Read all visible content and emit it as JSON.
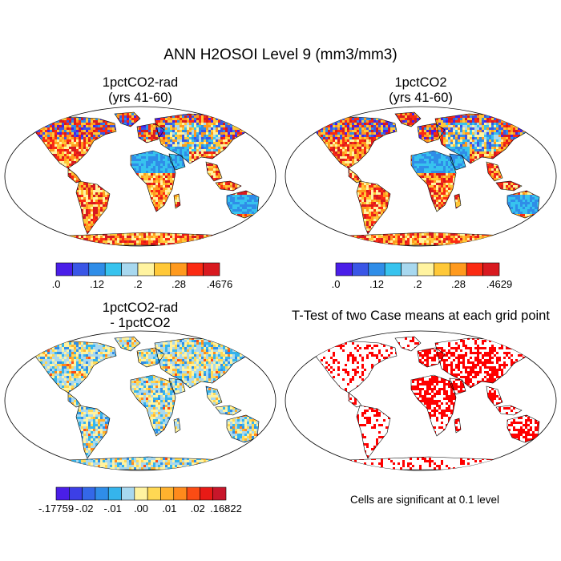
{
  "figure": {
    "title": "ANN H2OSOI Level 9 (mm3/mm3)",
    "note": "Cells are significant at 0.1 level"
  },
  "panels": [
    {
      "title_line1": "1pctCO2-rad",
      "title_line2": "(yrs 41-60)"
    },
    {
      "title_line1": "1pctCO2",
      "title_line2": "(yrs 41-60)"
    },
    {
      "title_line1": "1pctCO2-rad",
      "title_line2": "- 1pctCO2"
    },
    {
      "title_line1": "T-Test of two Case means at each grid point",
      "title_line2": ""
    }
  ],
  "colorbars": [
    {
      "colors": [
        "#4a1ee8",
        "#3a56e6",
        "#2f8de8",
        "#37c3ee",
        "#a8d8ef",
        "#fff3a0",
        "#ffc838",
        "#ff9a1e",
        "#fb2a12",
        "#d8191f"
      ],
      "labels": [
        ".0",
        ".12",
        ".2",
        ".28",
        ".4676"
      ]
    },
    {
      "colors": [
        "#4a1ee8",
        "#3a56e6",
        "#2f8de8",
        "#37c3ee",
        "#a8d8ef",
        "#fff3a0",
        "#ffc838",
        "#ff9a1e",
        "#fb2a12",
        "#d8191f"
      ],
      "labels": [
        ".0",
        ".12",
        ".2",
        ".28",
        ".4629"
      ]
    },
    {
      "colors": [
        "#4a1ee8",
        "#3c3fe6",
        "#3468e8",
        "#2f8de8",
        "#35b4ec",
        "#a8d8ef",
        "#fff3a0",
        "#ffd853",
        "#ffb22e",
        "#ff8a1c",
        "#fb4c14",
        "#e81a16",
        "#c8162a"
      ],
      "labels": [
        "-.17759",
        "-.02",
        "-.01",
        ".00",
        ".01",
        ".02",
        ".16822"
      ]
    }
  ]
}
